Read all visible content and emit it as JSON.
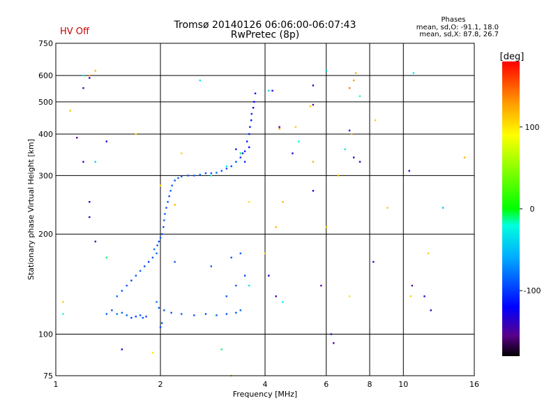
{
  "header": {
    "title": "Tromsø 20140126 06:06:00-06:07:43",
    "subtitle": "RwPretec (8p)",
    "status": "HV Off",
    "phases_title": "Phases",
    "phases_line1": "mean, sd,O: -91.1, 18.0",
    "phases_line2": "mean, sd,X:  87.8, 26.7"
  },
  "colors": {
    "status": "#cc0000",
    "grid": "#000000",
    "frame": "#000000"
  },
  "chart_data": {
    "type": "scatter",
    "xlabel": "Frequency [MHz]",
    "ylabel": "Stationary phase Virtual Height [km]",
    "xscale": "log",
    "yscale": "log",
    "xlim": [
      1,
      16
    ],
    "ylim": [
      75,
      750
    ],
    "xticks": [
      1,
      2,
      4,
      6,
      8,
      10,
      16
    ],
    "xtick_labels": [
      "1",
      "2",
      "4",
      "6",
      "8",
      "10",
      "16"
    ],
    "yticks": [
      75,
      100,
      200,
      300,
      400,
      500,
      600,
      750
    ],
    "ytick_labels": [
      "75",
      "100",
      "200",
      "300",
      "400",
      "500",
      "600",
      "750"
    ],
    "grid": true,
    "colorbar": {
      "label": "[deg]",
      "range": [
        -180,
        180
      ],
      "ticks": [
        100,
        0,
        -100
      ],
      "tick_labels": [
        "100",
        "0",
        "-100"
      ],
      "stops": [
        {
          "v": -180,
          "c": "#000000"
        },
        {
          "v": -155,
          "c": "#5a008a"
        },
        {
          "v": -120,
          "c": "#0000ff"
        },
        {
          "v": -60,
          "c": "#00aaff"
        },
        {
          "v": -20,
          "c": "#00ffdd"
        },
        {
          "v": 0,
          "c": "#00ff00"
        },
        {
          "v": 90,
          "c": "#ffff00"
        },
        {
          "v": 130,
          "c": "#ff9900"
        },
        {
          "v": 180,
          "c": "#ff0000"
        }
      ]
    },
    "series": [
      {
        "points": [
          [
            1.6,
            114,
            -90
          ],
          [
            1.65,
            112,
            -95
          ],
          [
            1.7,
            113,
            -100
          ],
          [
            1.75,
            114,
            -90
          ],
          [
            1.55,
            116,
            -85
          ],
          [
            1.5,
            115,
            -80
          ],
          [
            1.45,
            118,
            -95
          ],
          [
            1.4,
            115,
            -88
          ],
          [
            1.78,
            112,
            -92
          ],
          [
            1.82,
            113,
            -96
          ],
          [
            1.5,
            130,
            -85
          ],
          [
            1.55,
            135,
            -90
          ],
          [
            1.6,
            140,
            -92
          ],
          [
            1.65,
            145,
            -95
          ],
          [
            1.7,
            150,
            -90
          ],
          [
            1.75,
            155,
            -88
          ],
          [
            1.8,
            160,
            -95
          ],
          [
            1.85,
            165,
            -100
          ],
          [
            1.9,
            170,
            -92
          ],
          [
            1.95,
            175,
            -86
          ],
          [
            1.92,
            180,
            -80
          ],
          [
            1.96,
            185,
            -90
          ],
          [
            1.98,
            190,
            -95
          ],
          [
            2.0,
            195,
            -88
          ],
          [
            2.02,
            200,
            -90
          ],
          [
            2.04,
            210,
            -95
          ],
          [
            2.05,
            220,
            -85
          ],
          [
            2.06,
            230,
            -88
          ],
          [
            2.08,
            240,
            -92
          ],
          [
            2.1,
            250,
            -90
          ],
          [
            2.12,
            260,
            -95
          ],
          [
            2.14,
            270,
            -88
          ],
          [
            2.16,
            280,
            -90
          ],
          [
            2.2,
            290,
            -94
          ],
          [
            2.25,
            295,
            -86
          ],
          [
            2.3,
            298,
            -90
          ],
          [
            2.4,
            300,
            -92
          ],
          [
            2.5,
            300,
            -88
          ],
          [
            2.6,
            302,
            -80
          ],
          [
            2.7,
            305,
            -95
          ],
          [
            2.8,
            305,
            -90
          ],
          [
            2.9,
            306,
            -85
          ],
          [
            3.0,
            310,
            -92
          ],
          [
            3.1,
            315,
            -96
          ],
          [
            3.2,
            320,
            -100
          ],
          [
            3.3,
            330,
            -95
          ],
          [
            3.4,
            340,
            -105
          ],
          [
            3.5,
            355,
            -110
          ],
          [
            3.55,
            380,
            -115
          ],
          [
            3.6,
            400,
            -112
          ],
          [
            3.62,
            420,
            -108
          ],
          [
            3.65,
            440,
            -115
          ],
          [
            3.66,
            460,
            -110
          ],
          [
            3.7,
            480,
            -118
          ],
          [
            3.72,
            500,
            -120
          ],
          [
            3.75,
            530,
            -115
          ],
          [
            3.5,
            330,
            -110
          ],
          [
            3.45,
            350,
            -108
          ],
          [
            3.3,
            360,
            -112
          ],
          [
            3.6,
            365,
            -118
          ],
          [
            1.98,
            120,
            -88
          ],
          [
            2.05,
            118,
            -90
          ],
          [
            2.15,
            116,
            -92
          ],
          [
            2.3,
            115,
            -85
          ],
          [
            2.5,
            114,
            -90
          ],
          [
            2.7,
            115,
            -95
          ],
          [
            2.9,
            114,
            -88
          ],
          [
            3.1,
            115,
            -92
          ],
          [
            3.3,
            116,
            -90
          ],
          [
            3.4,
            118,
            -86
          ],
          [
            2.0,
            105,
            -95
          ],
          [
            2.02,
            108,
            -92
          ],
          [
            1.95,
            125,
            -80
          ],
          [
            2.2,
            165,
            -90
          ],
          [
            2.8,
            160,
            -88
          ],
          [
            3.2,
            170,
            -92
          ],
          [
            3.4,
            175,
            -90
          ],
          [
            3.5,
            150,
            -95
          ],
          [
            3.3,
            140,
            -88
          ],
          [
            3.1,
            130,
            -90
          ]
        ]
      },
      {
        "points": [
          [
            1.25,
            600,
            130
          ],
          [
            1.3,
            620,
            120
          ],
          [
            1.1,
            470,
            110
          ],
          [
            1.05,
            125,
            110
          ],
          [
            1.9,
            88,
            100
          ],
          [
            3.2,
            75,
            110
          ],
          [
            1.7,
            400,
            100
          ],
          [
            2.3,
            350,
            110
          ],
          [
            2.0,
            280,
            100
          ],
          [
            2.2,
            245,
            120
          ],
          [
            3.6,
            250,
            100
          ],
          [
            4.0,
            175,
            110
          ],
          [
            4.3,
            210,
            120
          ],
          [
            4.4,
            415,
            130
          ],
          [
            4.9,
            420,
            110
          ],
          [
            5.5,
            330,
            120
          ],
          [
            6.0,
            210,
            110
          ],
          [
            6.5,
            300,
            120
          ],
          [
            7.0,
            130,
            100
          ],
          [
            7.1,
            400,
            120
          ],
          [
            7.2,
            580,
            130
          ],
          [
            7.0,
            550,
            140
          ],
          [
            7.3,
            610,
            120
          ],
          [
            8.3,
            440,
            110
          ],
          [
            9.0,
            240,
            110
          ],
          [
            10.5,
            130,
            110
          ],
          [
            11.8,
            175,
            110
          ],
          [
            15.0,
            340,
            120
          ],
          [
            5.4,
            485,
            110
          ],
          [
            4.5,
            250,
            120
          ]
        ]
      },
      {
        "points": [
          [
            1.05,
            115,
            -20
          ],
          [
            1.2,
            600,
            -30
          ],
          [
            1.4,
            170,
            -10
          ],
          [
            1.3,
            330,
            -40
          ],
          [
            2.6,
            580,
            -30
          ],
          [
            2.8,
            300,
            -20
          ],
          [
            3.0,
            90,
            -10
          ],
          [
            4.5,
            125,
            -30
          ],
          [
            5.0,
            380,
            -20
          ],
          [
            6.0,
            620,
            -40
          ],
          [
            6.8,
            360,
            -30
          ],
          [
            7.5,
            520,
            -20
          ],
          [
            10.7,
            610,
            -30
          ],
          [
            13.0,
            240,
            -50
          ],
          [
            4.1,
            540,
            -40
          ],
          [
            3.1,
            320,
            -20
          ],
          [
            3.4,
            350,
            -10
          ],
          [
            3.6,
            140,
            -30
          ]
        ]
      },
      {
        "points": [
          [
            1.2,
            550,
            -140
          ],
          [
            1.25,
            590,
            -130
          ],
          [
            1.15,
            390,
            -150
          ],
          [
            1.2,
            330,
            -140
          ],
          [
            1.25,
            250,
            -130
          ],
          [
            1.25,
            225,
            -140
          ],
          [
            1.3,
            190,
            -150
          ],
          [
            1.4,
            380,
            -130
          ],
          [
            1.55,
            90,
            -140
          ],
          [
            4.2,
            540,
            -130
          ],
          [
            4.4,
            420,
            -150
          ],
          [
            4.8,
            350,
            -130
          ],
          [
            4.3,
            130,
            -140
          ],
          [
            5.5,
            560,
            -130
          ],
          [
            5.5,
            490,
            -150
          ],
          [
            5.5,
            270,
            -130
          ],
          [
            6.2,
            100,
            -140
          ],
          [
            6.3,
            94,
            -150
          ],
          [
            7.0,
            410,
            -130
          ],
          [
            7.2,
            340,
            -140
          ],
          [
            7.5,
            330,
            -130
          ],
          [
            8.2,
            165,
            -140
          ],
          [
            10.4,
            310,
            -130
          ],
          [
            10.6,
            140,
            -150
          ],
          [
            11.5,
            130,
            -130
          ],
          [
            12.0,
            118,
            -140
          ],
          [
            5.8,
            140,
            -150
          ],
          [
            4.1,
            150,
            -130
          ]
        ]
      }
    ]
  }
}
